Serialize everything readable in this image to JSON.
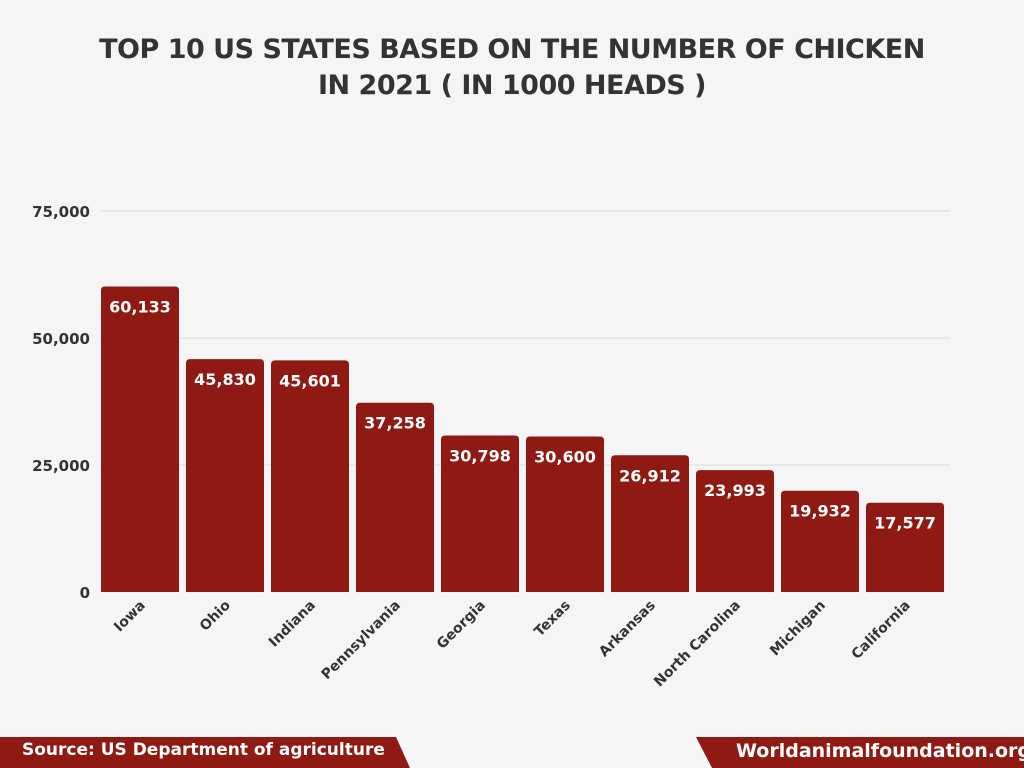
{
  "title": {
    "line1": "TOP 10 US STATES BASED ON THE NUMBER OF CHICKEN",
    "line2": "IN 2021 ( IN 1000 HEADS )"
  },
  "footer": {
    "source": "Source: US Department of agriculture",
    "website": "Worldanimalfoundation.org"
  },
  "colors": {
    "bar": "#8e1a13",
    "background": "#f5f5f5",
    "gridline": "#dcdcdc",
    "text": "#333333",
    "bar_label": "#ffffff"
  },
  "chart_data": {
    "type": "bar",
    "title": "TOP 10 US STATES BASED ON THE NUMBER OF CHICKEN IN 2021 ( IN 1000 HEADS )",
    "categories": [
      "Iowa",
      "Ohio",
      "Indiana",
      "Pennsylvania",
      "Georgia",
      "Texas",
      "Arkansas",
      "North Carolina",
      "Michigan",
      "California"
    ],
    "values": [
      60133,
      45830,
      45601,
      37258,
      30798,
      30600,
      26912,
      23993,
      19932,
      17577
    ],
    "value_labels": [
      "60,133",
      "45,830",
      "45,601",
      "37,258",
      "30,798",
      "30,600",
      "26,912",
      "23,993",
      "19,932",
      "17,577"
    ],
    "yticks": [
      0,
      25000,
      50000,
      75000
    ],
    "ytick_labels": [
      "0",
      "25,000",
      "50,000",
      "75,000"
    ],
    "ylim": [
      0,
      75000
    ],
    "xlabel": "",
    "ylabel": "",
    "grid": true,
    "legend": "none"
  }
}
